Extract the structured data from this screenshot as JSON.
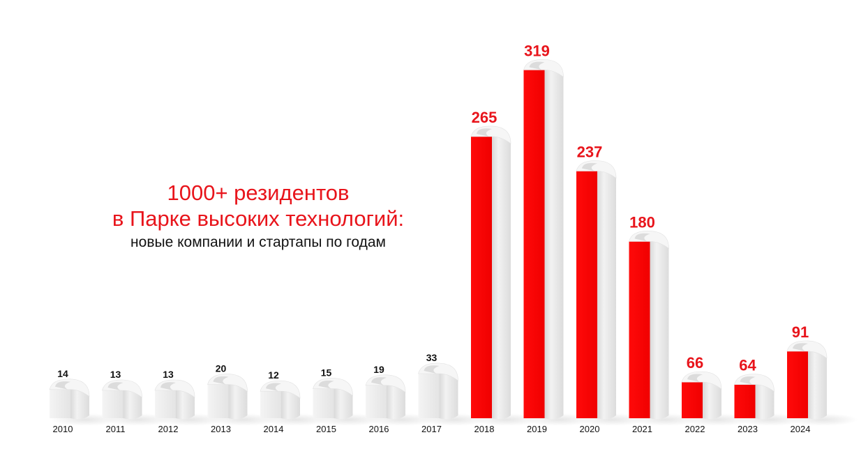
{
  "title": {
    "line1": "1000+ резидентов",
    "line2": "в Парке высоких технологий:",
    "subtitle": "новые компании и стартапы по годам"
  },
  "colors": {
    "accent": "#ff0000",
    "accent_text": "#e8141b",
    "bar_side": "#e6e6e6",
    "label_dark": "#111111"
  },
  "chart_data": {
    "type": "bar",
    "categories": [
      "2010",
      "2011",
      "2012",
      "2013",
      "2014",
      "2015",
      "2016",
      "2017",
      "2018",
      "2019",
      "2020",
      "2021",
      "2022",
      "2023",
      "2024"
    ],
    "values": [
      14,
      13,
      13,
      20,
      12,
      15,
      19,
      33,
      265,
      319,
      237,
      180,
      66,
      64,
      91
    ],
    "highlighted_from": "2018",
    "title": "1000+ резидентов в Парке высоких технологий:",
    "subtitle": "новые компании и стартапы по годам",
    "xlabel": "",
    "ylabel": "",
    "grid": false,
    "legend": "none"
  }
}
